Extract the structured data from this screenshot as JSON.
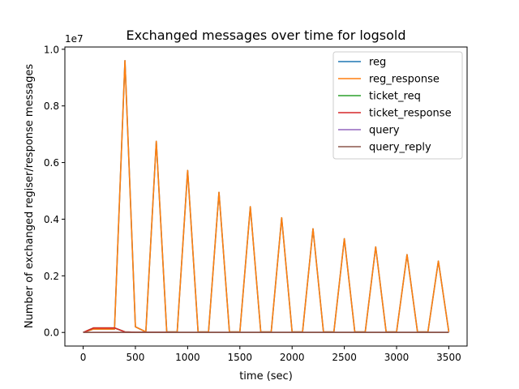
{
  "chart_data": {
    "type": "line",
    "title": "Exchanged messages over time for  logsold",
    "xlabel": "time (sec)",
    "ylabel": "Number of exchanged regiser/response messages",
    "y_offset_label": "1e7",
    "y_multiplier": 10000000,
    "xlim": [
      -175,
      3675
    ],
    "ylim": [
      -0.048,
      1.008
    ],
    "x_ticks": [
      0,
      500,
      1000,
      1500,
      2000,
      2500,
      3000,
      3500
    ],
    "y_ticks": [
      0.0,
      0.2,
      0.4,
      0.6,
      0.8,
      1.0
    ],
    "y_tick_labels": [
      "0.0",
      "0.2",
      "0.4",
      "0.6",
      "0.8",
      "1.0"
    ],
    "legend_position": "top-right",
    "x": [
      0,
      100,
      200,
      300,
      400,
      500,
      600,
      700,
      800,
      900,
      1000,
      1100,
      1200,
      1300,
      1400,
      1500,
      1600,
      1700,
      1800,
      1900,
      2000,
      2100,
      2200,
      2300,
      2400,
      2500,
      2600,
      2700,
      2800,
      2900,
      3000,
      3100,
      3200,
      3300,
      3400,
      3500
    ],
    "series": [
      {
        "name": "reg",
        "color": "#1f77b4",
        "values": [
          0,
          0.012,
          0.012,
          0.012,
          0.96,
          0.02,
          0.002,
          0.675,
          0.002,
          0.002,
          0.572,
          0.002,
          0.002,
          0.495,
          0.002,
          0.002,
          0.444,
          0.002,
          0.002,
          0.405,
          0.002,
          0.002,
          0.366,
          0.002,
          0.002,
          0.331,
          0.002,
          0.002,
          0.302,
          0.002,
          0.002,
          0.275,
          0.002,
          0.002,
          0.252,
          0.002
        ]
      },
      {
        "name": "reg_response",
        "color": "#ff7f0e",
        "values": [
          0,
          0.012,
          0.012,
          0.012,
          0.96,
          0.02,
          0.002,
          0.675,
          0.002,
          0.002,
          0.572,
          0.002,
          0.002,
          0.495,
          0.002,
          0.002,
          0.444,
          0.002,
          0.002,
          0.405,
          0.002,
          0.002,
          0.366,
          0.002,
          0.002,
          0.331,
          0.002,
          0.002,
          0.302,
          0.002,
          0.002,
          0.275,
          0.002,
          0.002,
          0.252,
          0.002
        ]
      },
      {
        "name": "ticket_req",
        "color": "#2ca02c",
        "values": [
          0,
          0.016,
          0.016,
          0.016,
          0.002,
          0.001,
          0.001,
          0.001,
          0.001,
          0,
          0,
          0,
          0,
          0,
          0,
          0,
          0,
          0,
          0,
          0,
          0,
          0,
          0,
          0,
          0,
          0,
          0,
          0,
          0,
          0,
          0,
          0,
          0,
          0,
          0,
          0
        ]
      },
      {
        "name": "ticket_response",
        "color": "#d62728",
        "values": [
          0,
          0.016,
          0.016,
          0.016,
          0.002,
          0.001,
          0.001,
          0.001,
          0.001,
          0,
          0,
          0,
          0,
          0,
          0,
          0,
          0,
          0,
          0,
          0,
          0,
          0,
          0,
          0,
          0,
          0,
          0,
          0,
          0,
          0,
          0,
          0,
          0,
          0,
          0,
          0
        ]
      },
      {
        "name": "query",
        "color": "#9467bd",
        "values": [
          0,
          0,
          0,
          0,
          0,
          0,
          0,
          0,
          0,
          0,
          0,
          0,
          0,
          0,
          0,
          0,
          0,
          0,
          0,
          0,
          0,
          0,
          0,
          0,
          0,
          0,
          0,
          0,
          0,
          0,
          0,
          0,
          0,
          0,
          0,
          0
        ]
      },
      {
        "name": "query_reply",
        "color": "#8c564b",
        "values": [
          0,
          0,
          0,
          0,
          0,
          0,
          0,
          0,
          0,
          0,
          0,
          0,
          0,
          0,
          0,
          0,
          0,
          0,
          0,
          0,
          0,
          0,
          0,
          0,
          0,
          0,
          0,
          0,
          0,
          0,
          0,
          0,
          0,
          0,
          0,
          0
        ]
      }
    ]
  }
}
